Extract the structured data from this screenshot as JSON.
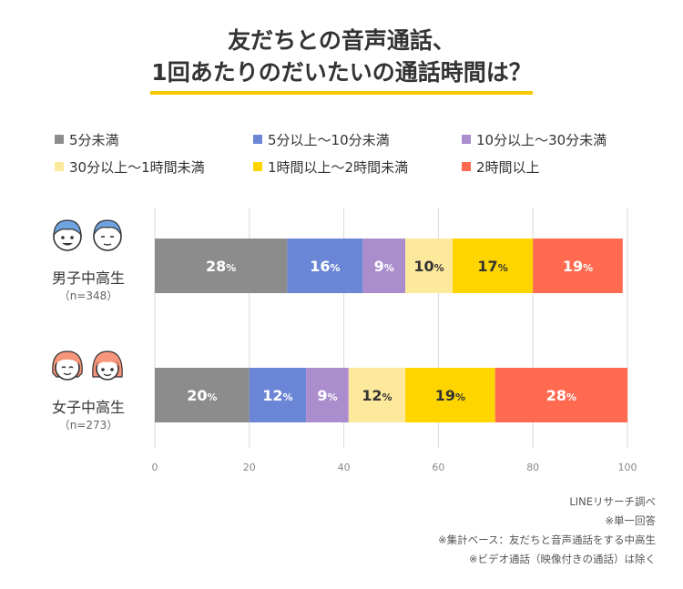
{
  "header": {
    "title_line1": "友だちとの音声通話、",
    "title_line2": "1回あたりのだいたいの通話時間は？"
  },
  "colors": {
    "underline": "#f5c800",
    "series": [
      "#8c8c8c",
      "#6b86d6",
      "#ab8dce",
      "#fde99c",
      "#ffd500",
      "#ff6a50"
    ],
    "label_dark": "#333333",
    "label_light": "#ffffff"
  },
  "legend": [
    "5分未満",
    "5分以上〜10分未満",
    "10分以上〜30分未満",
    "30分以上〜1時間未満",
    "1時間以上〜2時間未満",
    "2時間以上"
  ],
  "groups": [
    {
      "label": "男子中高生",
      "n": "（n=348）",
      "icon": "boys-icon"
    },
    {
      "label": "女子中高生",
      "n": "（n=273）",
      "icon": "girls-icon"
    }
  ],
  "chart_data": {
    "type": "bar",
    "orientation": "horizontal",
    "stacked": true,
    "title": "友だちとの音声通話、1回あたりのだいたいの通話時間は？",
    "categories": [
      "男子中高生",
      "女子中高生"
    ],
    "series": [
      {
        "name": "5分未満",
        "values": [
          28,
          20
        ]
      },
      {
        "name": "5分以上〜10分未満",
        "values": [
          16,
          12
        ]
      },
      {
        "name": "10分以上〜30分未満",
        "values": [
          9,
          9
        ]
      },
      {
        "name": "30分以上〜1時間未満",
        "values": [
          10,
          12
        ]
      },
      {
        "name": "1時間以上〜2時間未満",
        "values": [
          17,
          19
        ]
      },
      {
        "name": "2時間以上",
        "values": [
          19,
          28
        ]
      }
    ],
    "value_suffix": "%",
    "xlim": [
      0,
      100
    ],
    "xticks": [
      "0",
      "20",
      "40",
      "60",
      "80",
      "100"
    ],
    "grid": true,
    "legend_position": "top"
  },
  "notes": [
    "LINEリサーチ調べ",
    "※単一回答",
    "※集計ベース：友だちと音声通話をする中高生",
    "※ビデオ通話（映像付きの通話）は除く"
  ]
}
